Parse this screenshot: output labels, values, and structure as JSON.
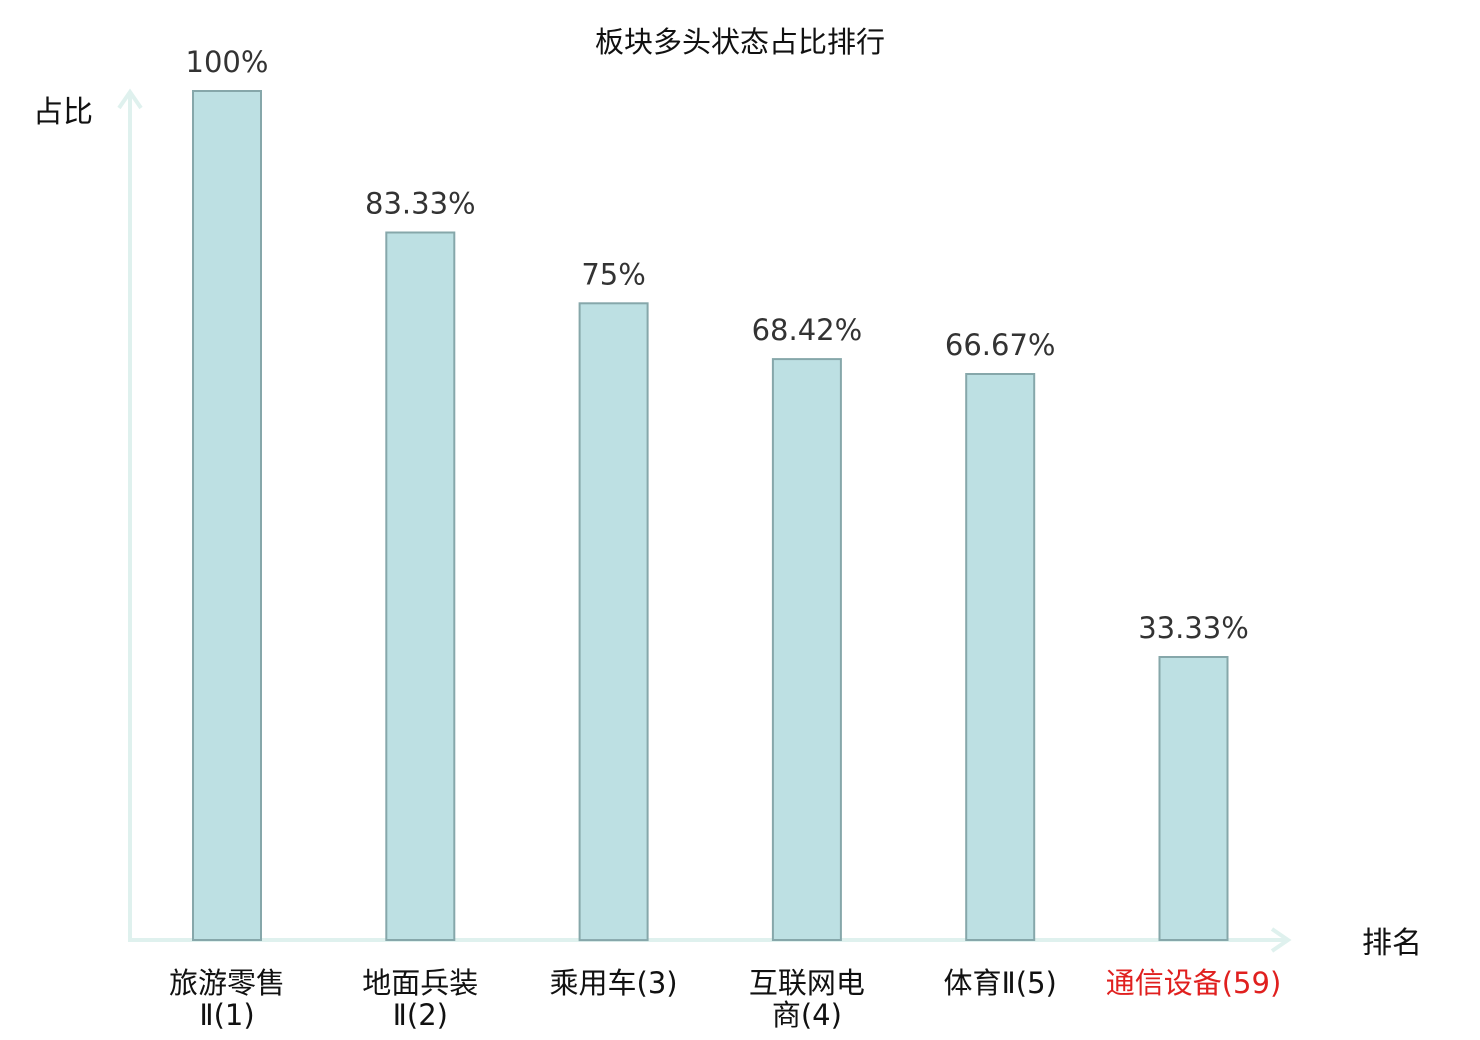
{
  "chart_data": {
    "type": "bar",
    "title": "板块多头状态占比排行",
    "ylabel": "占比",
    "xlabel": "排名",
    "ylim": [
      0,
      100
    ],
    "grid": false,
    "categories": [
      {
        "lines": [
          "旅游零售",
          "Ⅱ(1)"
        ],
        "highlight": false
      },
      {
        "lines": [
          "地面兵装",
          "Ⅱ(2)"
        ],
        "highlight": false
      },
      {
        "lines": [
          "乘用车(3)"
        ],
        "highlight": false
      },
      {
        "lines": [
          "互联网电",
          "商(4)"
        ],
        "highlight": false
      },
      {
        "lines": [
          "体育Ⅱ(5)"
        ],
        "highlight": false
      },
      {
        "lines": [
          "通信设备(59)"
        ],
        "highlight": true
      }
    ],
    "values": [
      100,
      83.33,
      75,
      68.42,
      66.67,
      33.33
    ],
    "value_labels": [
      "100%",
      "83.33%",
      "75%",
      "68.42%",
      "66.67%",
      "33.33%"
    ],
    "colors": {
      "bar_fill": "#bde0e3",
      "bar_stroke": "#86a7aa",
      "axis": "#dff1ee",
      "highlight_text": "#e0201f",
      "normal_text": "#111111"
    }
  }
}
